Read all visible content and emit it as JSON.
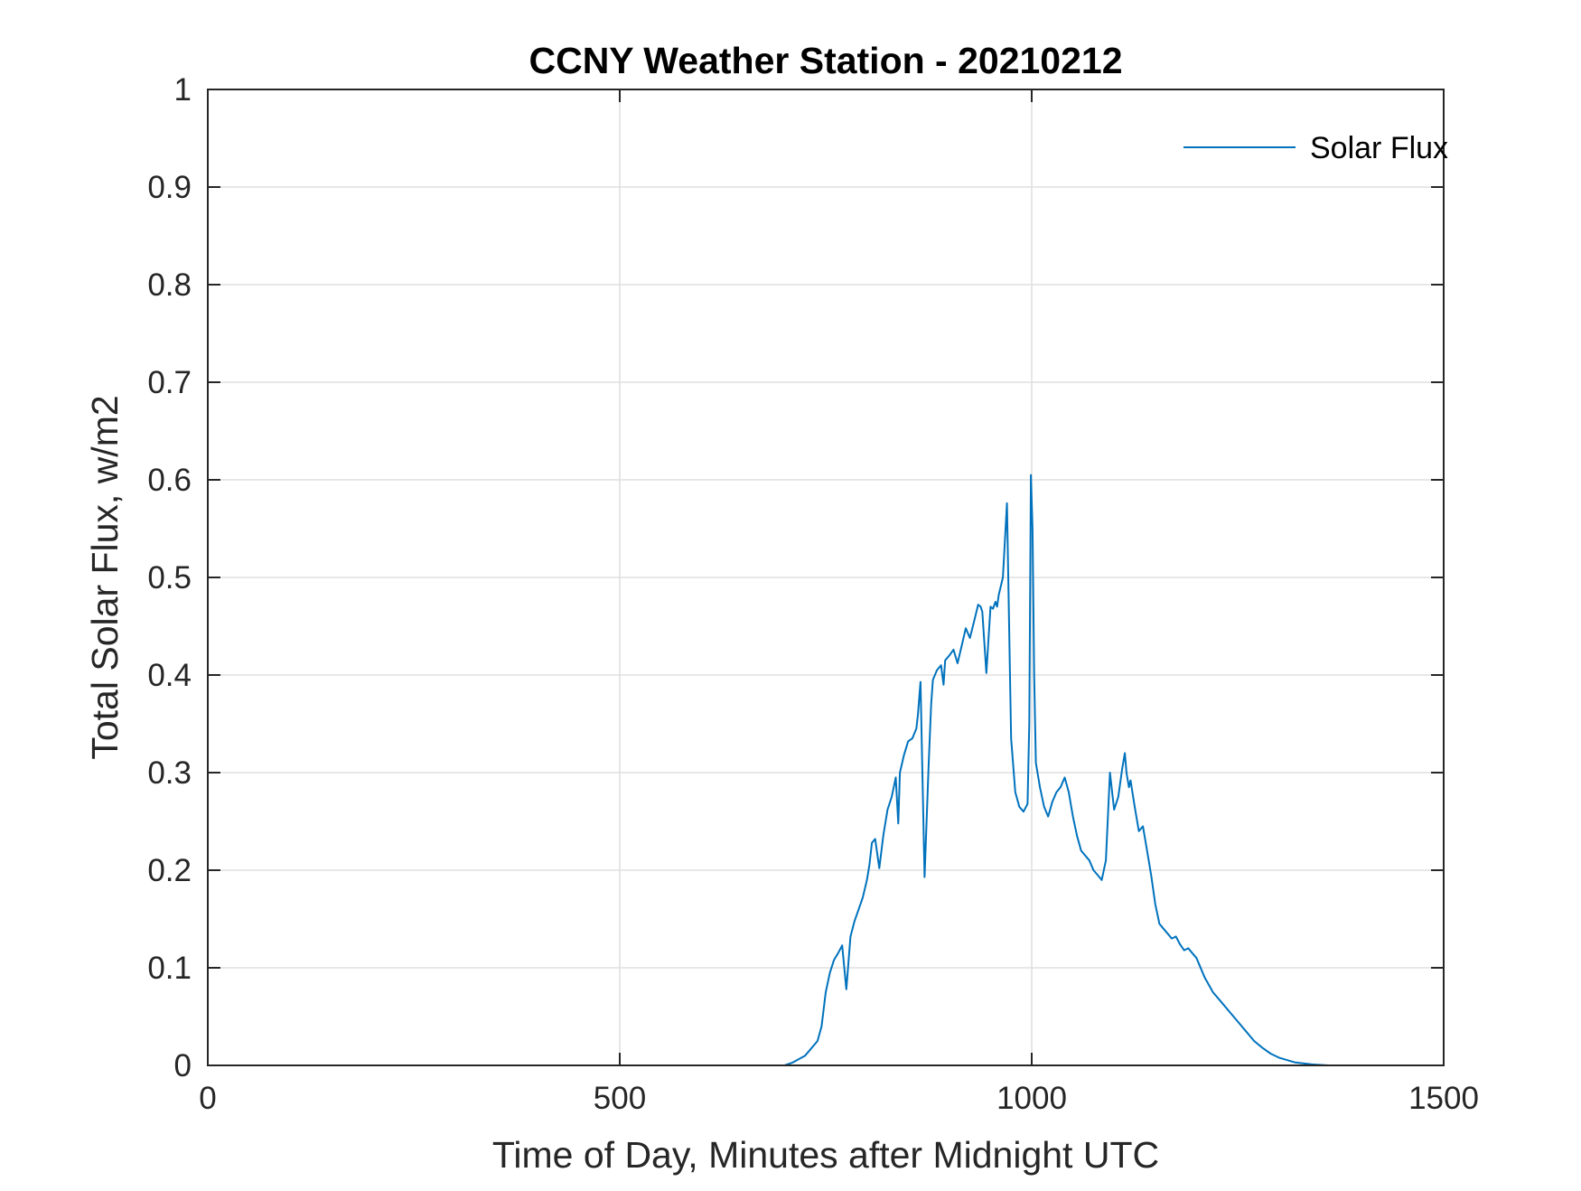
{
  "chart_data": {
    "type": "line",
    "title": "CCNY Weather Station - 20210212",
    "xlabel": "Time of Day, Minutes after Midnight UTC",
    "ylabel": "Total Solar Flux, w/m2",
    "xlim": [
      0,
      1500
    ],
    "ylim": [
      0,
      1
    ],
    "xticks": [
      0,
      500,
      1000,
      1500
    ],
    "xtick_labels": [
      "0",
      "500",
      "1000",
      "1500"
    ],
    "yticks": [
      0,
      0.1,
      0.2,
      0.3,
      0.4,
      0.5,
      0.6,
      0.7,
      0.8,
      0.9,
      1
    ],
    "ytick_labels": [
      "0",
      "0.1",
      "0.2",
      "0.3",
      "0.4",
      "0.5",
      "0.6",
      "0.7",
      "0.8",
      "0.9",
      "1"
    ],
    "grid": true,
    "legend_position": "top-right",
    "series": [
      {
        "name": "Solar Flux",
        "color": "#0072bd",
        "x": [
          0,
          700,
          710,
          725,
          740,
          745,
          750,
          755,
          760,
          765,
          770,
          775,
          780,
          785,
          790,
          795,
          800,
          803,
          806,
          810,
          815,
          820,
          825,
          830,
          835,
          838,
          840,
          845,
          850,
          855,
          860,
          862,
          865,
          870,
          875,
          878,
          880,
          885,
          890,
          893,
          895,
          900,
          905,
          910,
          915,
          920,
          925,
          930,
          935,
          938,
          940,
          945,
          950,
          953,
          956,
          958,
          960,
          965,
          970,
          975,
          980,
          985,
          990,
          995,
          997,
          999,
          1001,
          1003,
          1005,
          1010,
          1015,
          1020,
          1025,
          1030,
          1035,
          1040,
          1045,
          1050,
          1055,
          1060,
          1065,
          1070,
          1075,
          1080,
          1085,
          1090,
          1095,
          1100,
          1105,
          1110,
          1113,
          1115,
          1118,
          1120,
          1125,
          1130,
          1135,
          1140,
          1145,
          1150,
          1155,
          1160,
          1165,
          1170,
          1175,
          1180,
          1185,
          1190,
          1195,
          1200,
          1210,
          1220,
          1230,
          1240,
          1250,
          1260,
          1270,
          1280,
          1290,
          1300,
          1320,
          1340,
          1360,
          1380,
          1400,
          1420,
          1440
        ],
        "y": [
          0,
          0,
          0.003,
          0.01,
          0.025,
          0.04,
          0.075,
          0.095,
          0.108,
          0.115,
          0.123,
          0.078,
          0.132,
          0.148,
          0.16,
          0.172,
          0.19,
          0.205,
          0.228,
          0.232,
          0.202,
          0.236,
          0.262,
          0.275,
          0.295,
          0.248,
          0.3,
          0.318,
          0.332,
          0.335,
          0.345,
          0.36,
          0.393,
          0.193,
          0.31,
          0.37,
          0.395,
          0.405,
          0.41,
          0.39,
          0.415,
          0.42,
          0.426,
          0.412,
          0.43,
          0.448,
          0.438,
          0.455,
          0.472,
          0.47,
          0.465,
          0.402,
          0.47,
          0.468,
          0.475,
          0.47,
          0.482,
          0.5,
          0.576,
          0.335,
          0.28,
          0.265,
          0.26,
          0.268,
          0.35,
          0.605,
          0.55,
          0.4,
          0.31,
          0.285,
          0.265,
          0.255,
          0.27,
          0.28,
          0.285,
          0.295,
          0.28,
          0.255,
          0.235,
          0.22,
          0.215,
          0.21,
          0.2,
          0.195,
          0.19,
          0.21,
          0.3,
          0.262,
          0.275,
          0.305,
          0.32,
          0.3,
          0.285,
          0.292,
          0.265,
          0.24,
          0.245,
          0.22,
          0.195,
          0.165,
          0.145,
          0.14,
          0.135,
          0.13,
          0.132,
          0.124,
          0.118,
          0.12,
          0.115,
          0.11,
          0.09,
          0.075,
          0.065,
          0.055,
          0.045,
          0.035,
          0.025,
          0.018,
          0.012,
          0.008,
          0.003,
          0.001,
          0,
          0,
          0,
          0,
          0
        ]
      }
    ]
  }
}
